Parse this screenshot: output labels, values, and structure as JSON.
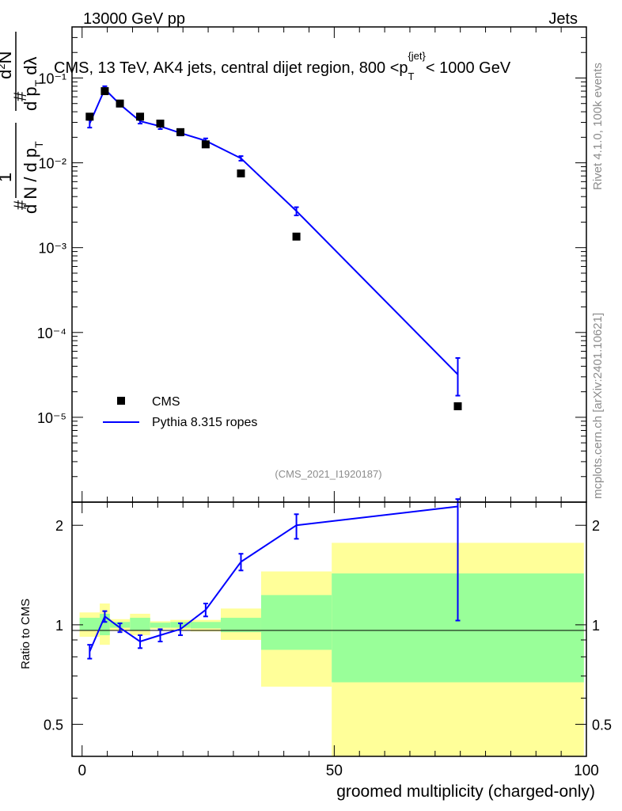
{
  "header": {
    "left": "13000 GeV pp",
    "right": "Jets"
  },
  "side": {
    "rivet": "Rivet 4.1.0,  100k events",
    "mcplots": "mcplots.cern.ch [arXiv:2401.10621]"
  },
  "analysis_id": "(CMS_2021_I1920187)",
  "chart_data": [
    {
      "type": "scatter",
      "name": "main",
      "title": "CMS, 13 TeV, AK4 jets, central dijet region, 800 <p_T^{jet}< 1000 GeV",
      "ylabel": "1/dN/dp_T  d²N/dp_T dλ",
      "yscale": "log",
      "ylim": [
        1e-06,
        0.4
      ],
      "ytick_labels": [
        "10⁻¹",
        "10⁻²",
        "10⁻³",
        "10⁻⁴",
        "10⁻⁵"
      ],
      "xlim": [
        -2,
        100
      ],
      "legend": {
        "position": "bottom-left",
        "entries": [
          "CMS",
          "Pythia 8.315 ropes"
        ]
      },
      "series": [
        {
          "name": "CMS",
          "style": "markers",
          "x": [
            1.5,
            4.5,
            7.5,
            11.5,
            15.5,
            19.5,
            24.5,
            31.5,
            42.5,
            74.5
          ],
          "y": [
            0.035,
            0.07,
            0.05,
            0.035,
            0.029,
            0.023,
            0.0165,
            0.0075,
            0.00135,
            1.35e-05
          ]
        },
        {
          "name": "Pythia 8.315 ropes",
          "style": "line",
          "color": "#0000ff",
          "x": [
            1.5,
            4.5,
            7.5,
            11.5,
            15.5,
            19.5,
            24.5,
            31.5,
            42.5,
            74.5
          ],
          "y": [
            0.029,
            0.074,
            0.049,
            0.031,
            0.027,
            0.0225,
            0.0182,
            0.0113,
            0.0027,
            3.2e-05
          ],
          "ylow": [
            0.026,
            0.068,
            0.046,
            0.029,
            0.025,
            0.021,
            0.017,
            0.0106,
            0.0024,
            1.8e-05
          ],
          "yhigh": [
            0.032,
            0.08,
            0.052,
            0.033,
            0.029,
            0.024,
            0.0194,
            0.012,
            0.003,
            5e-05
          ]
        }
      ]
    },
    {
      "type": "line",
      "name": "ratio",
      "xlabel": "groomed multiplicity (charged-only)",
      "ylabel": "Ratio to CMS",
      "yscale": "log",
      "ylim": [
        0.4,
        2.35
      ],
      "xlim": [
        -2,
        100
      ],
      "ytick_labels": [
        "0.5",
        "1",
        "2"
      ],
      "xtick_labels": [
        "0",
        "50",
        "100"
      ],
      "bands": [
        {
          "x0": -0.5,
          "x1": 3.5,
          "g": [
            0.96,
            1.05
          ],
          "y": [
            0.92,
            1.09
          ]
        },
        {
          "x0": 3.5,
          "x1": 5.5,
          "g": [
            0.93,
            1.08
          ],
          "y": [
            0.87,
            1.16
          ]
        },
        {
          "x0": 5.5,
          "x1": 9.5,
          "g": [
            0.98,
            1.02
          ],
          "y": [
            0.96,
            1.04
          ]
        },
        {
          "x0": 9.5,
          "x1": 13.5,
          "g": [
            0.96,
            1.05
          ],
          "y": [
            0.93,
            1.08
          ]
        },
        {
          "x0": 13.5,
          "x1": 17.5,
          "g": [
            0.98,
            1.015
          ],
          "y": [
            0.97,
            1.025
          ]
        },
        {
          "x0": 17.5,
          "x1": 21.5,
          "g": [
            0.98,
            1.02
          ],
          "y": [
            0.965,
            1.035
          ]
        },
        {
          "x0": 21.5,
          "x1": 27.5,
          "g": [
            0.975,
            1.02
          ],
          "y": [
            0.955,
            1.035
          ]
        },
        {
          "x0": 27.5,
          "x1": 35.5,
          "g": [
            0.95,
            1.05
          ],
          "y": [
            0.9,
            1.12
          ]
        },
        {
          "x0": 35.5,
          "x1": 49.5,
          "g": [
            0.84,
            1.23
          ],
          "y": [
            0.65,
            1.45
          ]
        },
        {
          "x0": 49.5,
          "x1": 99.5,
          "g": [
            0.67,
            1.43
          ],
          "y": [
            0.38,
            1.77
          ]
        }
      ],
      "series": [
        {
          "name": "Pythia 8.315 ropes",
          "color": "#0000ff",
          "x": [
            1.5,
            4.5,
            7.5,
            11.5,
            15.5,
            19.5,
            24.5,
            31.5,
            42.5,
            74.5
          ],
          "y": [
            0.83,
            1.06,
            0.98,
            0.89,
            0.93,
            0.97,
            1.11,
            1.55,
            2.0,
            2.28
          ],
          "ylow": [
            0.79,
            1.02,
            0.95,
            0.85,
            0.89,
            0.93,
            1.06,
            1.46,
            1.82,
            1.03
          ],
          "yhigh": [
            0.87,
            1.1,
            1.01,
            0.93,
            0.97,
            1.01,
            1.16,
            1.64,
            2.16,
            2.4
          ]
        }
      ]
    }
  ]
}
